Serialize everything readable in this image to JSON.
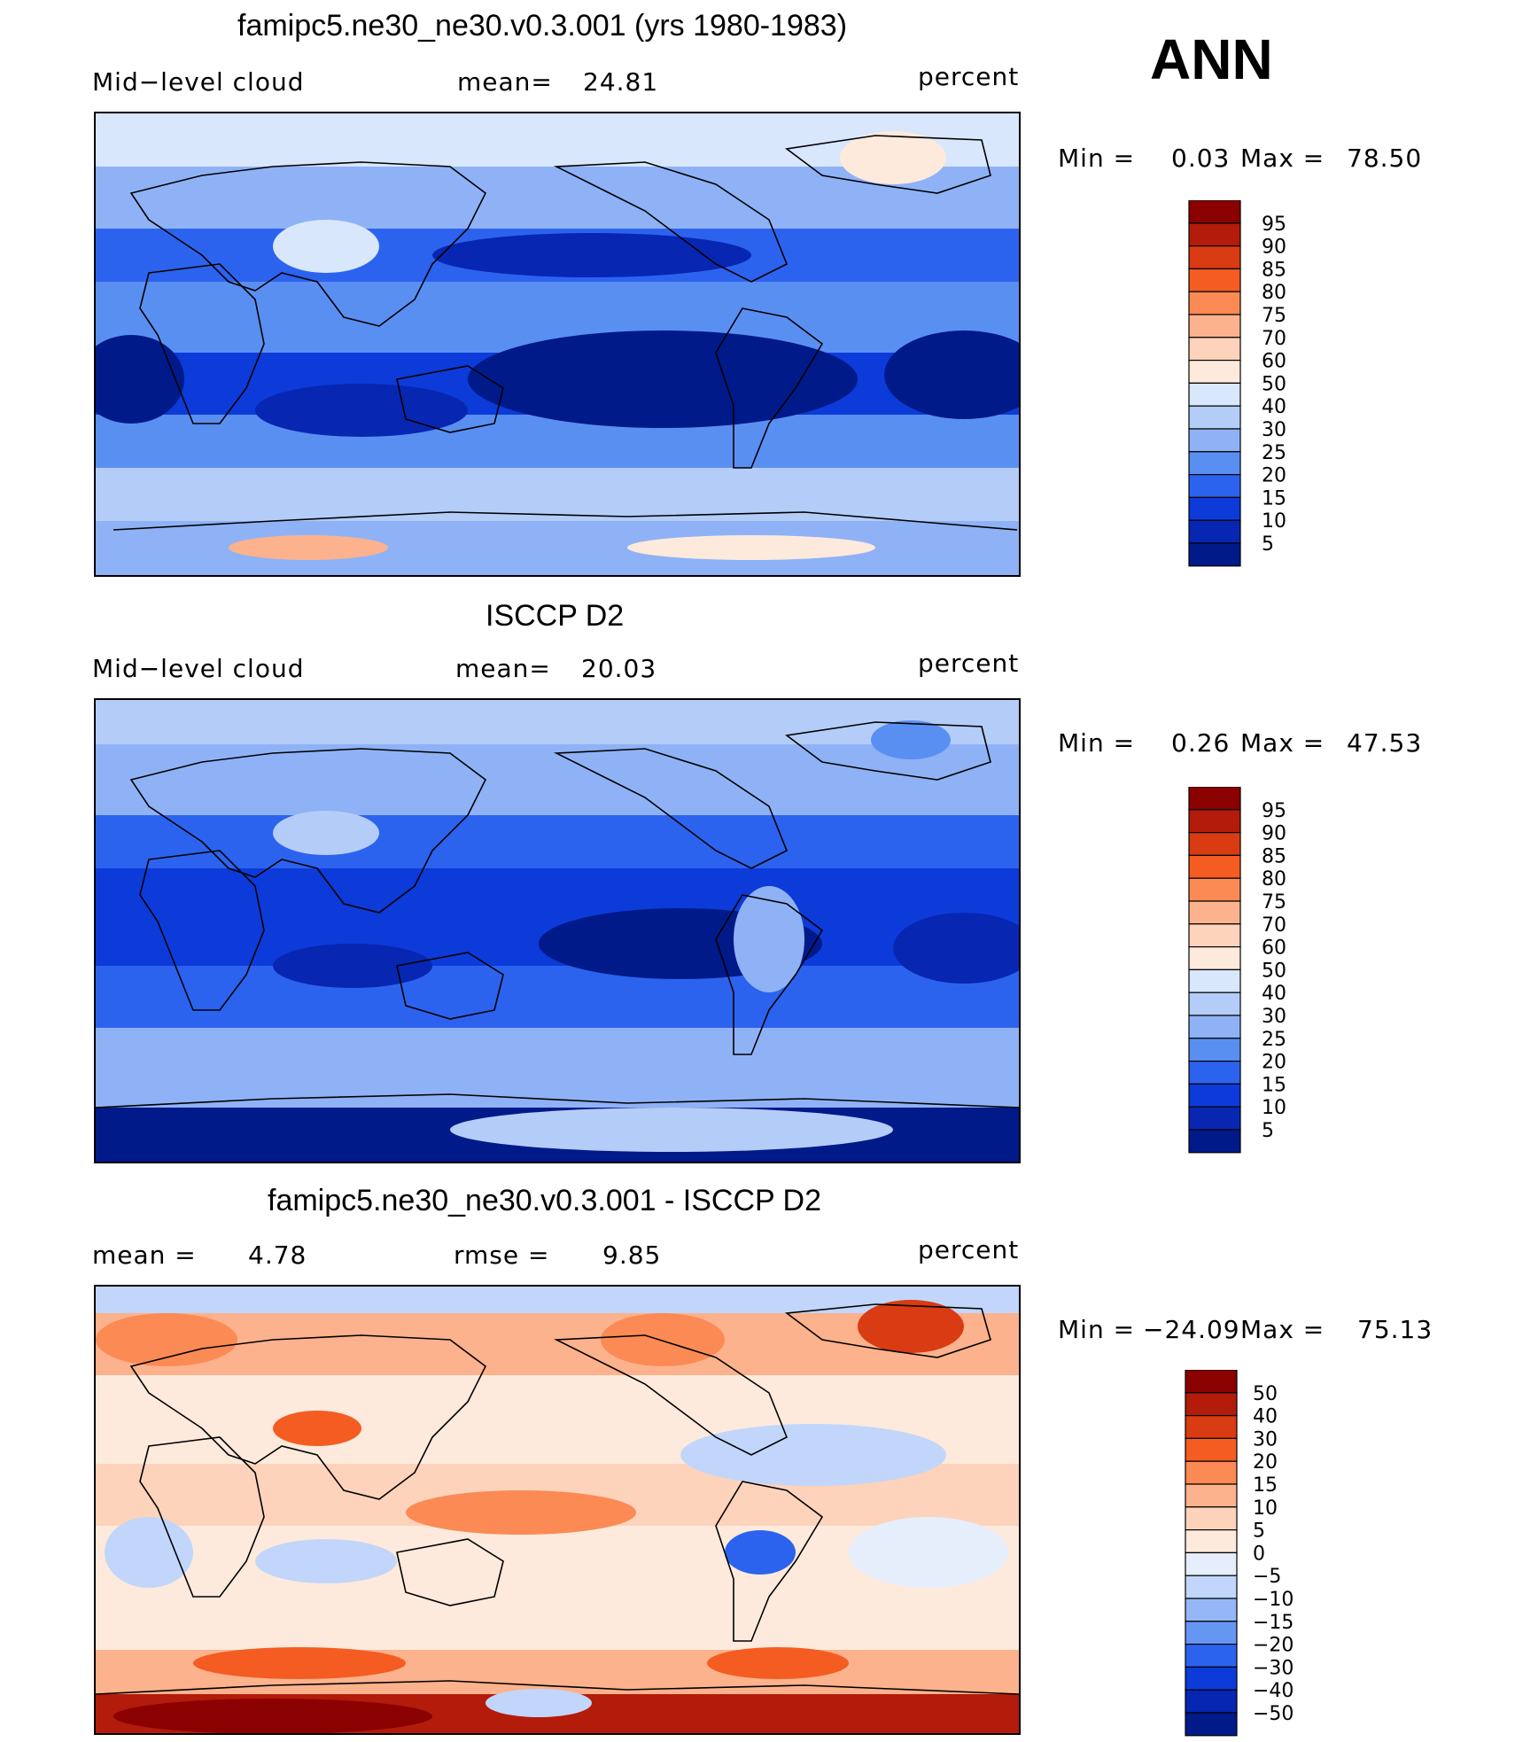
{
  "season": "ANN",
  "units": "percent",
  "panels": [
    {
      "title": "famipc5.ne30_ne30.v0.3.001 (yrs 1980-1983)",
      "left_label": "Mid−level  cloud",
      "mid_label": "mean=",
      "mid_value": "24.81",
      "right_label": "percent",
      "min_label": "Min  =",
      "min_value": "0.03",
      "max_label": "Max  =",
      "max_value": "78.50"
    },
    {
      "title": "ISCCP D2",
      "left_label": "Mid−level  cloud",
      "mid_label": "mean=",
      "mid_value": "20.03",
      "right_label": "percent",
      "min_label": "Min  =",
      "min_value": "0.26",
      "max_label": "Max  =",
      "max_value": "47.53"
    },
    {
      "title": "famipc5.ne30_ne30.v0.3.001 - ISCCP D2",
      "left_label": "mean  =",
      "left_value": "4.78",
      "mid_label": "rmse  =",
      "mid_value": "9.85",
      "right_label": "percent",
      "min_label": "Min  =",
      "min_value": "−24.09",
      "max_label": "Max  =",
      "max_value": "75.13"
    }
  ],
  "colorbars": {
    "abs_levels": [
      "95",
      "90",
      "85",
      "80",
      "75",
      "70",
      "60",
      "50",
      "40",
      "30",
      "25",
      "20",
      "15",
      "10",
      "5"
    ],
    "abs_colors": [
      "#8b0000",
      "#b31b0a",
      "#d93b12",
      "#f45c22",
      "#fb8a54",
      "#fcb28c",
      "#fdd3bb",
      "#fdeadc",
      "#d8e7fb",
      "#b4cdf8",
      "#8fb2f6",
      "#5a8ff2",
      "#2c63ee",
      "#0c3bd9",
      "#0726b2",
      "#001a8a"
    ],
    "diff_levels": [
      "50",
      "40",
      "30",
      "20",
      "15",
      "10",
      "5",
      "0",
      "−5",
      "−10",
      "−15",
      "−20",
      "−30",
      "−40",
      "−50"
    ],
    "diff_colors": [
      "#8b0000",
      "#b31b0a",
      "#d93b12",
      "#f45c22",
      "#fb8a54",
      "#fcb28c",
      "#fdd3bb",
      "#fdeadc",
      "#e6eefc",
      "#c1d6fa",
      "#96b7f7",
      "#6596f2",
      "#2c63ee",
      "#0c3bd9",
      "#0726b2",
      "#001a8a"
    ]
  },
  "chart_data": [
    {
      "type": "heatmap",
      "title": "famipc5.ne30_ne30.v0.3.001 (yrs 1980-1983)",
      "subtitle": "Mid-level cloud",
      "units": "percent",
      "mean": 24.81,
      "min": 0.03,
      "max": 78.5,
      "levels": [
        5,
        10,
        15,
        20,
        25,
        30,
        40,
        50,
        60,
        70,
        75,
        80,
        85,
        90,
        95
      ]
    },
    {
      "type": "heatmap",
      "title": "ISCCP D2",
      "subtitle": "Mid-level cloud",
      "units": "percent",
      "mean": 20.03,
      "min": 0.26,
      "max": 47.53,
      "levels": [
        5,
        10,
        15,
        20,
        25,
        30,
        40,
        50,
        60,
        70,
        75,
        80,
        85,
        90,
        95
      ]
    },
    {
      "type": "heatmap",
      "title": "famipc5.ne30_ne30.v0.3.001 - ISCCP D2",
      "units": "percent",
      "mean": 4.78,
      "rmse": 9.85,
      "min": -24.09,
      "max": 75.13,
      "levels": [
        -50,
        -40,
        -30,
        -20,
        -15,
        -10,
        -5,
        0,
        5,
        10,
        15,
        20,
        30,
        40,
        50
      ]
    }
  ]
}
